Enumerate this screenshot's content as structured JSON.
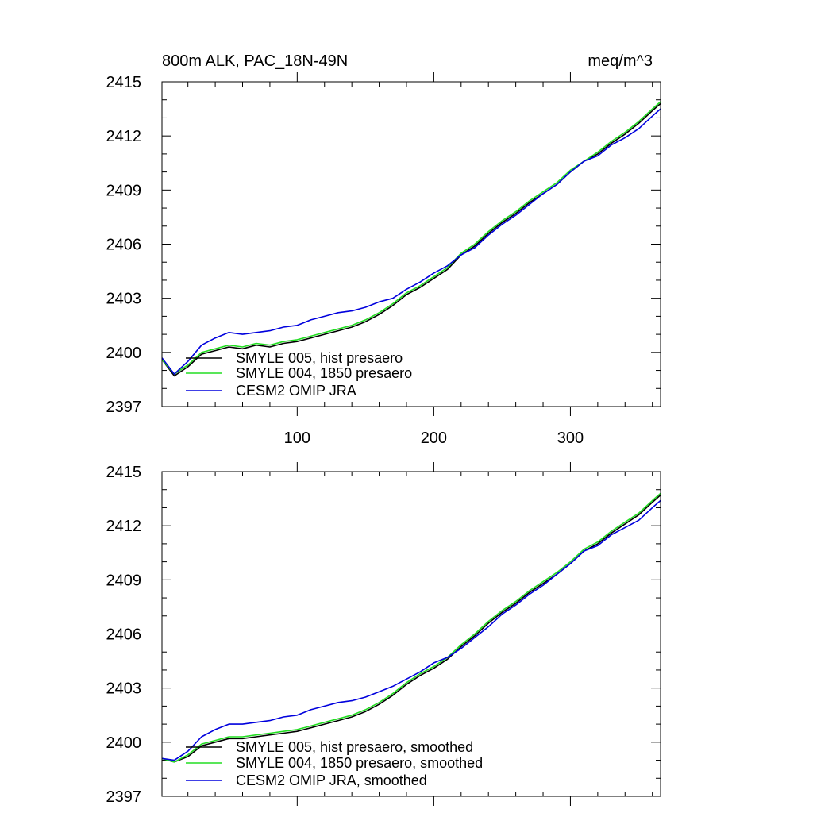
{
  "chart_data": [
    {
      "type": "line",
      "title": "800m ALK, PAC_18N-49N",
      "units": "meq/m^3",
      "xlabel": "",
      "ylabel": "",
      "xlim": [
        1,
        366
      ],
      "ylim": [
        2397,
        2415
      ],
      "yticks": [
        2397,
        2400,
        2403,
        2406,
        2409,
        2412,
        2415
      ],
      "xticks": [
        100,
        200,
        300
      ],
      "legend_position": "bottom-left",
      "x": [
        1,
        10,
        20,
        30,
        40,
        50,
        60,
        70,
        80,
        90,
        100,
        110,
        120,
        130,
        140,
        150,
        160,
        170,
        180,
        190,
        200,
        210,
        220,
        230,
        240,
        250,
        260,
        270,
        280,
        290,
        300,
        310,
        320,
        330,
        340,
        350,
        360,
        366
      ],
      "series": [
        {
          "name": "SMYLE 005, hist presaero",
          "color": "#000000",
          "values": [
            2399.6,
            2398.7,
            2399.2,
            2399.9,
            2400.1,
            2400.3,
            2400.2,
            2400.4,
            2400.3,
            2400.5,
            2400.6,
            2400.8,
            2401.0,
            2401.2,
            2401.4,
            2401.7,
            2402.1,
            2402.6,
            2403.2,
            2403.6,
            2404.1,
            2404.6,
            2405.4,
            2405.9,
            2406.6,
            2407.2,
            2407.7,
            2408.3,
            2408.8,
            2409.3,
            2410.0,
            2410.6,
            2411.0,
            2411.6,
            2412.1,
            2412.7,
            2413.4,
            2413.8
          ]
        },
        {
          "name": "SMYLE 004, 1850 presaero",
          "color": "#22dd22",
          "values": [
            2399.6,
            2398.8,
            2399.3,
            2400.0,
            2400.2,
            2400.4,
            2400.3,
            2400.5,
            2400.4,
            2400.6,
            2400.7,
            2400.9,
            2401.1,
            2401.3,
            2401.5,
            2401.8,
            2402.2,
            2402.7,
            2403.3,
            2403.7,
            2404.2,
            2404.7,
            2405.5,
            2406.0,
            2406.7,
            2407.3,
            2407.8,
            2408.4,
            2408.9,
            2409.4,
            2410.1,
            2410.6,
            2411.1,
            2411.7,
            2412.2,
            2412.8,
            2413.5,
            2413.9
          ]
        },
        {
          "name": "CESM2 OMIP JRA",
          "color": "#0000dd",
          "values": [
            2399.7,
            2398.8,
            2399.5,
            2400.4,
            2400.8,
            2401.1,
            2401.0,
            2401.1,
            2401.2,
            2401.4,
            2401.5,
            2401.8,
            2402.0,
            2402.2,
            2402.3,
            2402.5,
            2402.8,
            2403.0,
            2403.5,
            2403.9,
            2404.4,
            2404.8,
            2405.4,
            2405.8,
            2406.5,
            2407.1,
            2407.6,
            2408.2,
            2408.8,
            2409.3,
            2410.0,
            2410.6,
            2410.9,
            2411.5,
            2411.9,
            2412.4,
            2413.1,
            2413.5
          ]
        }
      ]
    },
    {
      "type": "line",
      "title": "",
      "xlabel": "",
      "ylabel": "",
      "xlim": [
        1,
        366
      ],
      "ylim": [
        2397,
        2415
      ],
      "yticks": [
        2397,
        2400,
        2403,
        2406,
        2409,
        2412,
        2415
      ],
      "xticks": [
        100,
        200,
        300
      ],
      "legend_position": "bottom-left",
      "x": [
        1,
        10,
        20,
        30,
        40,
        50,
        60,
        70,
        80,
        90,
        100,
        110,
        120,
        130,
        140,
        150,
        160,
        170,
        180,
        190,
        200,
        210,
        220,
        230,
        240,
        250,
        260,
        270,
        280,
        290,
        300,
        310,
        320,
        330,
        340,
        350,
        360,
        366
      ],
      "series": [
        {
          "name": "SMYLE 005, hist presaero, smoothed",
          "color": "#000000",
          "values": [
            2399.1,
            2398.9,
            2399.2,
            2399.8,
            2400.0,
            2400.2,
            2400.2,
            2400.3,
            2400.4,
            2400.5,
            2400.6,
            2400.8,
            2401.0,
            2401.2,
            2401.4,
            2401.7,
            2402.1,
            2402.6,
            2403.2,
            2403.7,
            2404.1,
            2404.6,
            2405.3,
            2405.9,
            2406.6,
            2407.2,
            2407.7,
            2408.3,
            2408.8,
            2409.3,
            2409.9,
            2410.6,
            2411.0,
            2411.6,
            2412.1,
            2412.6,
            2413.3,
            2413.7
          ]
        },
        {
          "name": "SMYLE 004, 1850 presaero, smoothed",
          "color": "#22dd22",
          "values": [
            2399.1,
            2398.9,
            2399.3,
            2399.9,
            2400.1,
            2400.3,
            2400.3,
            2400.4,
            2400.5,
            2400.6,
            2400.7,
            2400.9,
            2401.1,
            2401.3,
            2401.5,
            2401.8,
            2402.2,
            2402.7,
            2403.3,
            2403.8,
            2404.2,
            2404.7,
            2405.4,
            2406.0,
            2406.7,
            2407.3,
            2407.8,
            2408.4,
            2408.9,
            2409.4,
            2410.0,
            2410.7,
            2411.1,
            2411.7,
            2412.2,
            2412.7,
            2413.4,
            2413.8
          ]
        },
        {
          "name": "CESM2 OMIP JRA, smoothed",
          "color": "#0000dd",
          "values": [
            2399.1,
            2399.0,
            2399.5,
            2400.3,
            2400.7,
            2401.0,
            2401.0,
            2401.1,
            2401.2,
            2401.4,
            2401.5,
            2401.8,
            2402.0,
            2402.2,
            2402.3,
            2402.5,
            2402.8,
            2403.1,
            2403.5,
            2403.9,
            2404.4,
            2404.7,
            2405.2,
            2405.8,
            2406.4,
            2407.1,
            2407.6,
            2408.2,
            2408.7,
            2409.3,
            2409.9,
            2410.6,
            2410.9,
            2411.5,
            2411.9,
            2412.3,
            2413.0,
            2413.4
          ]
        }
      ]
    }
  ]
}
